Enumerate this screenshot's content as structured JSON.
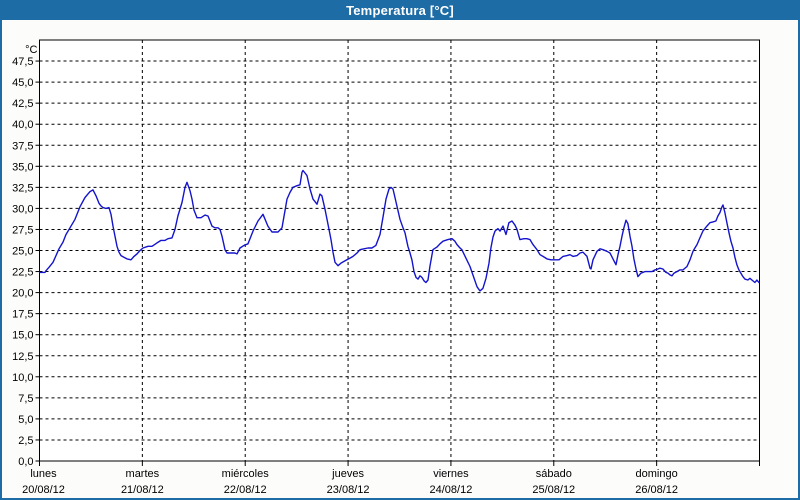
{
  "window": {
    "title": "Temperatura [°C]"
  },
  "colors": {
    "titlebar": "#1e6ca5",
    "window_border": "#1e6ca5",
    "background": "#fcfdfb",
    "title_text": "#ffffff",
    "line": "#1414cc",
    "grid": "#000000",
    "frame": "#000000",
    "label_text": "#000000"
  },
  "chart": {
    "unit_label": "°C",
    "y_axis": {
      "labels": [
        "0,0",
        "2,5",
        "5,0",
        "7,5",
        "10,0",
        "12,5",
        "15,0",
        "17,5",
        "20,0",
        "22,5",
        "25,0",
        "27,5",
        "30,0",
        "32,5",
        "35,0",
        "37,5",
        "40,0",
        "42,5",
        "45,0",
        "47,5"
      ],
      "step": 2.5,
      "min": 0,
      "max": 50
    },
    "x_axis": {
      "days": [
        {
          "name": "lunes",
          "date": "20/08/12"
        },
        {
          "name": "martes",
          "date": "21/08/12"
        },
        {
          "name": "miércoles",
          "date": "22/08/12"
        },
        {
          "name": "jueves",
          "date": "23/08/12"
        },
        {
          "name": "viernes",
          "date": "24/08/12"
        },
        {
          "name": "sábado",
          "date": "25/08/12"
        },
        {
          "name": "domingo",
          "date": "26/08/12"
        }
      ]
    }
  },
  "chart_data": {
    "type": "line",
    "title": "Temperatura [°C]",
    "ylabel": "°C",
    "ylim": [
      0,
      50
    ],
    "ytick_step": 2.5,
    "xlim_days": [
      0,
      7
    ],
    "x_unit": "day index (0 = lunes 20/08/12 00:00, 7 = end of domingo 26/08/12)",
    "grid": "dashed",
    "legend": "none",
    "series": [
      {
        "name": "Temperatura",
        "color": "#1414cc",
        "points": [
          [
            0.005,
            22.4
          ],
          [
            0.053,
            22.4
          ],
          [
            0.063,
            22.6
          ],
          [
            0.092,
            23.0
          ],
          [
            0.131,
            23.6
          ],
          [
            0.16,
            24.4
          ],
          [
            0.19,
            25.2
          ],
          [
            0.228,
            26.0
          ],
          [
            0.258,
            26.9
          ],
          [
            0.297,
            27.7
          ],
          [
            0.345,
            28.7
          ],
          [
            0.394,
            30.2
          ],
          [
            0.442,
            31.3
          ],
          [
            0.491,
            32.0
          ],
          [
            0.52,
            32.2
          ],
          [
            0.549,
            31.5
          ],
          [
            0.578,
            30.6
          ],
          [
            0.598,
            30.3
          ],
          [
            0.617,
            30.1
          ],
          [
            0.647,
            30.0
          ],
          [
            0.676,
            30.1
          ],
          [
            0.695,
            29.3
          ],
          [
            0.715,
            27.9
          ],
          [
            0.734,
            26.7
          ],
          [
            0.753,
            25.5
          ],
          [
            0.773,
            24.8
          ],
          [
            0.792,
            24.4
          ],
          [
            0.821,
            24.2
          ],
          [
            0.851,
            24.0
          ],
          [
            0.89,
            23.9
          ],
          [
            0.919,
            24.3
          ],
          [
            0.948,
            24.6
          ],
          [
            0.977,
            25.0
          ],
          [
            1.006,
            25.3
          ],
          [
            1.055,
            25.5
          ],
          [
            1.094,
            25.5
          ],
          [
            1.142,
            25.9
          ],
          [
            1.181,
            26.2
          ],
          [
            1.22,
            26.2
          ],
          [
            1.249,
            26.4
          ],
          [
            1.288,
            26.5
          ],
          [
            1.317,
            27.5
          ],
          [
            1.346,
            29.1
          ],
          [
            1.385,
            30.7
          ],
          [
            1.415,
            32.5
          ],
          [
            1.434,
            33.1
          ],
          [
            1.463,
            32.1
          ],
          [
            1.483,
            31.1
          ],
          [
            1.502,
            29.8
          ],
          [
            1.531,
            28.9
          ],
          [
            1.57,
            28.9
          ],
          [
            1.609,
            29.2
          ],
          [
            1.638,
            29.1
          ],
          [
            1.677,
            27.9
          ],
          [
            1.706,
            27.7
          ],
          [
            1.735,
            27.7
          ],
          [
            1.755,
            27.5
          ],
          [
            1.774,
            26.7
          ],
          [
            1.803,
            25.1
          ],
          [
            1.823,
            24.7
          ],
          [
            1.862,
            24.7
          ],
          [
            1.9,
            24.7
          ],
          [
            1.92,
            24.6
          ],
          [
            1.949,
            25.3
          ],
          [
            1.988,
            25.6
          ],
          [
            2.027,
            25.8
          ],
          [
            2.076,
            27.3
          ],
          [
            2.124,
            28.5
          ],
          [
            2.173,
            29.3
          ],
          [
            2.221,
            27.9
          ],
          [
            2.26,
            27.2
          ],
          [
            2.319,
            27.2
          ],
          [
            2.358,
            27.7
          ],
          [
            2.406,
            31.1
          ],
          [
            2.435,
            31.9
          ],
          [
            2.464,
            32.5
          ],
          [
            2.503,
            32.7
          ],
          [
            2.533,
            32.8
          ],
          [
            2.552,
            34.3
          ],
          [
            2.562,
            34.5
          ],
          [
            2.581,
            34.2
          ],
          [
            2.601,
            33.9
          ],
          [
            2.63,
            32.3
          ],
          [
            2.659,
            31.1
          ],
          [
            2.698,
            30.5
          ],
          [
            2.727,
            31.7
          ],
          [
            2.746,
            31.5
          ],
          [
            2.776,
            29.9
          ],
          [
            2.795,
            28.7
          ],
          [
            2.815,
            27.5
          ],
          [
            2.834,
            26.3
          ],
          [
            2.853,
            24.8
          ],
          [
            2.873,
            23.6
          ],
          [
            2.902,
            23.2
          ],
          [
            2.931,
            23.5
          ],
          [
            2.96,
            23.7
          ],
          [
            2.989,
            23.9
          ],
          [
            3.019,
            24.1
          ],
          [
            3.048,
            24.3
          ],
          [
            3.087,
            24.7
          ],
          [
            3.116,
            25.1
          ],
          [
            3.155,
            25.2
          ],
          [
            3.194,
            25.3
          ],
          [
            3.232,
            25.3
          ],
          [
            3.271,
            25.6
          ],
          [
            3.31,
            26.9
          ],
          [
            3.339,
            28.9
          ],
          [
            3.369,
            31.1
          ],
          [
            3.398,
            32.3
          ],
          [
            3.417,
            32.5
          ],
          [
            3.437,
            32.3
          ],
          [
            3.475,
            30.3
          ],
          [
            3.505,
            28.7
          ],
          [
            3.534,
            27.7
          ],
          [
            3.553,
            27.1
          ],
          [
            3.582,
            25.5
          ],
          [
            3.602,
            24.7
          ],
          [
            3.621,
            23.9
          ],
          [
            3.641,
            22.5
          ],
          [
            3.66,
            21.8
          ],
          [
            3.68,
            21.6
          ],
          [
            3.699,
            22.0
          ],
          [
            3.718,
            21.8
          ],
          [
            3.738,
            21.4
          ],
          [
            3.757,
            21.2
          ],
          [
            3.777,
            21.5
          ],
          [
            3.796,
            23.1
          ],
          [
            3.825,
            25.1
          ],
          [
            3.864,
            25.4
          ],
          [
            3.894,
            25.8
          ],
          [
            3.923,
            26.1
          ],
          [
            3.971,
            26.3
          ],
          [
            4.01,
            26.4
          ],
          [
            4.039,
            26.1
          ],
          [
            4.059,
            25.7
          ],
          [
            4.088,
            25.3
          ],
          [
            4.107,
            25.1
          ],
          [
            4.146,
            24.1
          ],
          [
            4.185,
            23.1
          ],
          [
            4.214,
            22.1
          ],
          [
            4.253,
            20.7
          ],
          [
            4.282,
            20.2
          ],
          [
            4.311,
            20.5
          ],
          [
            4.341,
            21.7
          ],
          [
            4.37,
            23.5
          ],
          [
            4.389,
            25.3
          ],
          [
            4.409,
            26.6
          ],
          [
            4.428,
            27.3
          ],
          [
            4.457,
            27.6
          ],
          [
            4.477,
            27.3
          ],
          [
            4.506,
            27.9
          ],
          [
            4.535,
            26.9
          ],
          [
            4.564,
            28.3
          ],
          [
            4.594,
            28.5
          ],
          [
            4.623,
            28.0
          ],
          [
            4.642,
            27.5
          ],
          [
            4.671,
            26.3
          ],
          [
            4.71,
            26.4
          ],
          [
            4.739,
            26.4
          ],
          [
            4.769,
            26.3
          ],
          [
            4.798,
            25.7
          ],
          [
            4.837,
            25.1
          ],
          [
            4.866,
            24.5
          ],
          [
            4.895,
            24.3
          ],
          [
            4.934,
            24.0
          ],
          [
            4.973,
            23.9
          ],
          [
            5.012,
            23.9
          ],
          [
            5.051,
            23.9
          ],
          [
            5.09,
            24.3
          ],
          [
            5.128,
            24.4
          ],
          [
            5.158,
            24.5
          ],
          [
            5.187,
            24.3
          ],
          [
            5.226,
            24.4
          ],
          [
            5.255,
            24.7
          ],
          [
            5.284,
            24.8
          ],
          [
            5.323,
            24.3
          ],
          [
            5.352,
            22.9
          ],
          [
            5.362,
            22.8
          ],
          [
            5.381,
            23.9
          ],
          [
            5.42,
            24.9
          ],
          [
            5.449,
            25.2
          ],
          [
            5.478,
            25.1
          ],
          [
            5.517,
            24.9
          ],
          [
            5.547,
            24.7
          ],
          [
            5.576,
            24.0
          ],
          [
            5.605,
            23.3
          ],
          [
            5.624,
            24.5
          ],
          [
            5.644,
            25.5
          ],
          [
            5.663,
            26.7
          ],
          [
            5.682,
            27.7
          ],
          [
            5.702,
            28.6
          ],
          [
            5.721,
            28.2
          ],
          [
            5.741,
            26.7
          ],
          [
            5.76,
            25.5
          ],
          [
            5.779,
            24.0
          ],
          [
            5.799,
            22.8
          ],
          [
            5.818,
            21.9
          ],
          [
            5.847,
            22.3
          ],
          [
            5.886,
            22.5
          ],
          [
            5.915,
            22.5
          ],
          [
            5.954,
            22.5
          ],
          [
            5.983,
            22.7
          ],
          [
            6.013,
            22.8
          ],
          [
            6.032,
            22.9
          ],
          [
            6.061,
            22.8
          ],
          [
            6.09,
            22.4
          ],
          [
            6.11,
            22.3
          ],
          [
            6.129,
            22.1
          ],
          [
            6.149,
            22.0
          ],
          [
            6.168,
            22.3
          ],
          [
            6.197,
            22.5
          ],
          [
            6.226,
            22.7
          ],
          [
            6.256,
            22.7
          ],
          [
            6.295,
            23.1
          ],
          [
            6.324,
            23.9
          ],
          [
            6.353,
            24.9
          ],
          [
            6.372,
            25.3
          ],
          [
            6.392,
            25.7
          ],
          [
            6.421,
            26.5
          ],
          [
            6.45,
            27.3
          ],
          [
            6.489,
            27.9
          ],
          [
            6.518,
            28.3
          ],
          [
            6.547,
            28.4
          ],
          [
            6.576,
            28.5
          ],
          [
            6.596,
            29.1
          ],
          [
            6.615,
            29.5
          ],
          [
            6.635,
            30.2
          ],
          [
            6.645,
            30.4
          ],
          [
            6.664,
            29.5
          ],
          [
            6.683,
            28.3
          ],
          [
            6.703,
            27.1
          ],
          [
            6.722,
            26.1
          ],
          [
            6.742,
            25.3
          ],
          [
            6.761,
            24.2
          ],
          [
            6.78,
            23.3
          ],
          [
            6.8,
            22.7
          ],
          [
            6.819,
            22.3
          ],
          [
            6.839,
            21.9
          ],
          [
            6.858,
            21.6
          ],
          [
            6.887,
            21.5
          ],
          [
            6.907,
            21.7
          ],
          [
            6.926,
            21.5
          ],
          [
            6.955,
            21.2
          ],
          [
            6.975,
            21.5
          ],
          [
            6.994,
            21.2
          ]
        ]
      }
    ]
  }
}
